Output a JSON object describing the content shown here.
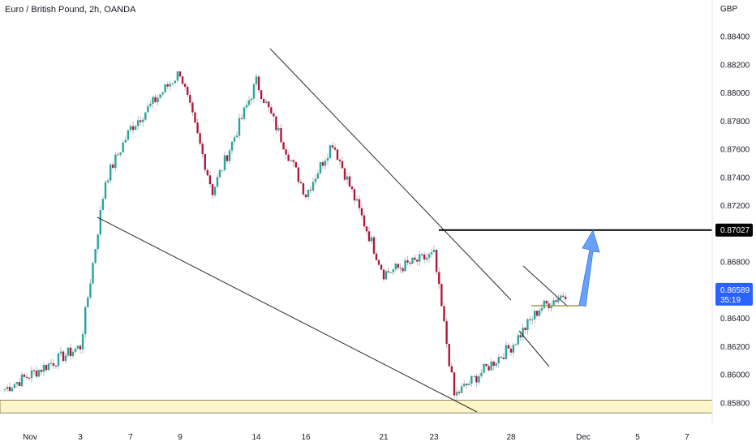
{
  "header": {
    "title": "Euro / British Pound, 2h, OANDA",
    "currency": "GBP"
  },
  "colors": {
    "up": "#26a69a",
    "down": "#b2173b",
    "wick": "#9aa0a6",
    "zone_fill": "#fdf6c9",
    "zone_stroke": "#6b6b4a",
    "trendline": "#2b2b2b",
    "resistance": "#000000",
    "arrow": "#4f8ff7",
    "price_badge": "#2962ff",
    "level_badge": "#000000"
  },
  "chart_data": {
    "type": "line",
    "title": "Euro / British Pound, 2h, OANDA",
    "xlabel": "",
    "ylabel": "GBP",
    "ylim": [
      0.8573,
      0.8852
    ],
    "y_ticks": [
      "0.88400",
      "0.88200",
      "0.88000",
      "0.87800",
      "0.87600",
      "0.87400",
      "0.87200",
      "0.86800",
      "0.86400",
      "0.86200",
      "0.86000",
      "0.85800"
    ],
    "x_ticks": [
      "Nov",
      "3",
      "7",
      "9",
      "14",
      "16",
      "21",
      "23",
      "28",
      "Dec",
      "5",
      "7"
    ],
    "series": [
      {
        "x": [
          "Nov",
          "3",
          "5",
          "7",
          "9",
          "10",
          "14",
          "16",
          "18",
          "21",
          "23",
          "24",
          "28",
          "29",
          "30"
        ],
        "values": [
          0.859,
          0.862,
          0.8738,
          0.8775,
          0.8815,
          0.873,
          0.8808,
          0.8728,
          0.8765,
          0.8672,
          0.8685,
          0.8585,
          0.862,
          0.8647,
          0.8659
        ]
      }
    ],
    "levels": {
      "current_price": "0.86589",
      "countdown": "35:19",
      "resistance": "0.87027",
      "support_zone": [
        0.8573,
        0.8582
      ]
    },
    "annotations": [
      "falling wedge",
      "flag",
      "breakout arrow to 0.87027"
    ],
    "grid": false
  }
}
